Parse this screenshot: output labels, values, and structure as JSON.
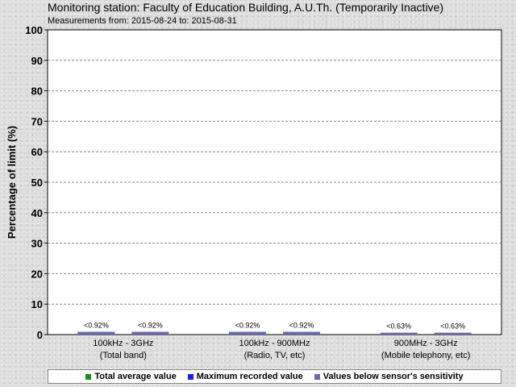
{
  "title": "Monitoring station: Faculty of Education Building, A.U.Th. (Temporarily Inactive)",
  "subtitle": "Measurements from: 2015-08-24 to: 2015-08-31",
  "chart_data": {
    "type": "bar",
    "ylabel": "Percentage of limit (%)",
    "ylim": [
      0,
      100
    ],
    "yticks": [
      0,
      10,
      20,
      30,
      40,
      50,
      60,
      70,
      80,
      90,
      100
    ],
    "grid": true,
    "legend_position": "bottom",
    "categories": [
      {
        "line1": "100kHz - 3GHz",
        "line2": "(Total band)"
      },
      {
        "line1": "100kHz - 900MHz",
        "line2": "(Radio, TV, etc)"
      },
      {
        "line1": "900MHz - 3GHz",
        "line2": "(Mobile telephony, etc)"
      }
    ],
    "bars": [
      {
        "category": 0,
        "value": 0.92,
        "label": "<0.92%",
        "color": "#6b6bac"
      },
      {
        "category": 0,
        "value": 0.92,
        "label": "<0.92%",
        "color": "#6b6bac"
      },
      {
        "category": 1,
        "value": 0.92,
        "label": "<0.92%",
        "color": "#6b6bac"
      },
      {
        "category": 1,
        "value": 0.92,
        "label": "<0.92%",
        "color": "#6b6bac"
      },
      {
        "category": 2,
        "value": 0.63,
        "label": "<0.63%",
        "color": "#6b6bac"
      },
      {
        "category": 2,
        "value": 0.63,
        "label": "<0.63%",
        "color": "#6b6bac"
      }
    ]
  },
  "legend": {
    "items": [
      {
        "label": "Total average value",
        "color": "#1a8c1a"
      },
      {
        "label": "Maximum recorded value",
        "color": "#1e1ee6"
      },
      {
        "label": "Values below sensor's sensitivity",
        "color": "#6b6bac"
      }
    ]
  }
}
